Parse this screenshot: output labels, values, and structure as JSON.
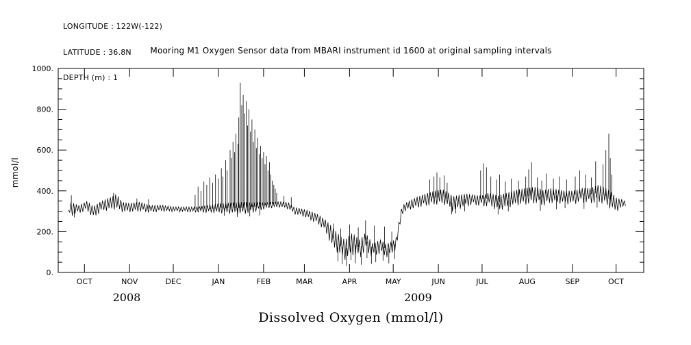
{
  "header": {
    "longitude": "LONGITUDE : 122W(-122)",
    "latitude": "LATITUDE : 36.8N",
    "depth": "DEPTH (m) : 1"
  },
  "title": "Mooring M1 Oxygen Sensor data from MBARI instrument id 1600 at original sampling intervals",
  "caption": "Dissolved Oxygen (mmol/l)",
  "chart_data": {
    "type": "line",
    "title": "Mooring M1 Oxygen Sensor data from MBARI instrument id 1600 at original sampling intervals",
    "xlabel": "Dissolved Oxygen (mmol/l)",
    "ylabel": "mmol/l",
    "ylim": [
      0,
      1000
    ],
    "y_ticks": [
      0,
      200,
      400,
      600,
      800,
      1000
    ],
    "y_tick_labels": [
      "0.",
      "200.",
      "400.",
      "600.",
      "800.",
      "1000."
    ],
    "x_domain_days": [
      -18,
      384
    ],
    "x_day_reference": "day 0 = OCT 2008 month tick; ticks at calendar month starts",
    "x_ticks_days": [
      0,
      31,
      61,
      92,
      123,
      151,
      182,
      212,
      243,
      273,
      304,
      335,
      365
    ],
    "x_tick_labels": [
      "OCT",
      "NOV",
      "DEC",
      "JAN",
      "FEB",
      "MAR",
      "APR",
      "MAY",
      "JUN",
      "JUL",
      "AUG",
      "SEP",
      "OCT"
    ],
    "year_labels": [
      {
        "text": "2008",
        "day": 29
      },
      {
        "text": "2009",
        "day": 229
      }
    ],
    "line_color": "#000000",
    "grid": false,
    "legend": "none",
    "envelope_format": "[day, band_low_mmol_l, band_high_mmol_l] noisy-band envelope of the sensor trace",
    "envelope": [
      [
        -11,
        295,
        310
      ],
      [
        -9,
        275,
        370
      ],
      [
        -4,
        290,
        340
      ],
      [
        2,
        300,
        360
      ],
      [
        6,
        265,
        330
      ],
      [
        12,
        300,
        355
      ],
      [
        18,
        305,
        370
      ],
      [
        22,
        310,
        385
      ],
      [
        26,
        295,
        345
      ],
      [
        31,
        295,
        340
      ],
      [
        38,
        298,
        348
      ],
      [
        45,
        292,
        332
      ],
      [
        53,
        298,
        338
      ],
      [
        61,
        298,
        330
      ],
      [
        70,
        296,
        326
      ],
      [
        76,
        294,
        324
      ],
      [
        83,
        292,
        330
      ],
      [
        92,
        290,
        338
      ],
      [
        100,
        288,
        342
      ],
      [
        108,
        285,
        348
      ],
      [
        116,
        292,
        350
      ],
      [
        123,
        308,
        352
      ],
      [
        128,
        315,
        355
      ],
      [
        134,
        318,
        358
      ],
      [
        140,
        310,
        350
      ],
      [
        144,
        285,
        325
      ],
      [
        151,
        272,
        312
      ],
      [
        156,
        252,
        300
      ],
      [
        161,
        232,
        282
      ],
      [
        165,
        205,
        262
      ],
      [
        170,
        125,
        225
      ],
      [
        175,
        85,
        185
      ],
      [
        179,
        60,
        165
      ],
      [
        184,
        85,
        205
      ],
      [
        189,
        65,
        175
      ],
      [
        193,
        105,
        215
      ],
      [
        198,
        70,
        165
      ],
      [
        203,
        92,
        185
      ],
      [
        207,
        72,
        155
      ],
      [
        212,
        92,
        165
      ],
      [
        214,
        110,
        180
      ],
      [
        216,
        200,
        260
      ],
      [
        218,
        285,
        330
      ],
      [
        222,
        305,
        350
      ],
      [
        228,
        315,
        370
      ],
      [
        234,
        325,
        385
      ],
      [
        240,
        330,
        400
      ],
      [
        246,
        335,
        410
      ],
      [
        250,
        320,
        395
      ],
      [
        253,
        295,
        380
      ],
      [
        257,
        310,
        390
      ],
      [
        262,
        322,
        400
      ],
      [
        268,
        330,
        398
      ],
      [
        273,
        320,
        395
      ],
      [
        278,
        325,
        405
      ],
      [
        284,
        300,
        385
      ],
      [
        290,
        315,
        395
      ],
      [
        296,
        328,
        405
      ],
      [
        304,
        332,
        415
      ],
      [
        310,
        338,
        420
      ],
      [
        315,
        325,
        405
      ],
      [
        321,
        340,
        420
      ],
      [
        328,
        336,
        412
      ],
      [
        335,
        332,
        420
      ],
      [
        341,
        342,
        438
      ],
      [
        347,
        336,
        428
      ],
      [
        353,
        342,
        440
      ],
      [
        358,
        330,
        420
      ],
      [
        362,
        305,
        395
      ],
      [
        365,
        298,
        368
      ],
      [
        369,
        315,
        358
      ],
      [
        372,
        328,
        345
      ]
    ],
    "spikes_format": "[day, peak_value_mmol_l] isolated vertical excursions from the band",
    "spikes": [
      [
        -9,
        378
      ],
      [
        -7,
        270
      ],
      [
        20,
        390
      ],
      [
        36,
        362
      ],
      [
        44,
        358
      ],
      [
        76,
        380
      ],
      [
        78,
        420
      ],
      [
        80,
        400
      ],
      [
        82,
        445
      ],
      [
        84,
        430
      ],
      [
        86,
        465
      ],
      [
        88,
        440
      ],
      [
        90,
        480
      ],
      [
        92,
        460
      ],
      [
        94,
        510
      ],
      [
        95,
        470
      ],
      [
        96,
        278
      ],
      [
        97,
        550
      ],
      [
        98,
        500
      ],
      [
        100,
        600
      ],
      [
        101,
        560
      ],
      [
        102,
        640
      ],
      [
        103,
        590
      ],
      [
        104,
        680
      ],
      [
        105,
        272
      ],
      [
        105.5,
        630
      ],
      [
        106,
        760
      ],
      [
        107,
        930
      ],
      [
        108,
        820
      ],
      [
        109,
        870
      ],
      [
        110,
        780
      ],
      [
        111,
        840
      ],
      [
        112,
        720
      ],
      [
        113,
        800
      ],
      [
        113.5,
        275
      ],
      [
        114,
        690
      ],
      [
        115,
        750
      ],
      [
        116,
        640
      ],
      [
        117,
        700
      ],
      [
        118,
        610
      ],
      [
        119,
        660
      ],
      [
        120,
        580
      ],
      [
        120.5,
        280
      ],
      [
        121,
        620
      ],
      [
        122,
        560
      ],
      [
        123,
        590
      ],
      [
        124,
        530
      ],
      [
        125,
        570
      ],
      [
        126,
        500
      ],
      [
        127,
        540
      ],
      [
        128,
        480
      ],
      [
        129,
        450
      ],
      [
        130,
        430
      ],
      [
        131,
        410
      ],
      [
        132,
        390
      ],
      [
        137,
        375
      ],
      [
        142,
        368
      ],
      [
        171,
        240
      ],
      [
        174,
        55
      ],
      [
        176,
        215
      ],
      [
        177,
        40
      ],
      [
        180,
        32
      ],
      [
        182,
        235
      ],
      [
        183,
        60
      ],
      [
        186,
        45
      ],
      [
        188,
        220
      ],
      [
        190,
        38
      ],
      [
        193,
        255
      ],
      [
        194,
        70
      ],
      [
        197,
        42
      ],
      [
        199,
        230
      ],
      [
        200,
        50
      ],
      [
        205,
        58
      ],
      [
        206,
        225
      ],
      [
        209,
        45
      ],
      [
        211,
        200
      ],
      [
        213,
        65
      ],
      [
        237,
        455
      ],
      [
        240,
        470
      ],
      [
        242,
        490
      ],
      [
        244,
        465
      ],
      [
        247,
        475
      ],
      [
        249,
        440
      ],
      [
        252,
        285
      ],
      [
        255,
        290
      ],
      [
        261,
        300
      ],
      [
        272,
        500
      ],
      [
        274,
        535
      ],
      [
        276,
        515
      ],
      [
        279,
        470
      ],
      [
        283,
        455
      ],
      [
        284,
        285
      ],
      [
        285,
        480
      ],
      [
        289,
        445
      ],
      [
        291,
        300
      ],
      [
        293,
        460
      ],
      [
        298,
        450
      ],
      [
        303,
        470
      ],
      [
        305,
        505
      ],
      [
        307,
        540
      ],
      [
        311,
        465
      ],
      [
        313,
        302
      ],
      [
        314,
        450
      ],
      [
        317,
        485
      ],
      [
        322,
        460
      ],
      [
        324,
        310
      ],
      [
        326,
        470
      ],
      [
        330,
        315
      ],
      [
        331,
        455
      ],
      [
        337,
        470
      ],
      [
        340,
        500
      ],
      [
        343,
        312
      ],
      [
        344,
        480
      ],
      [
        348,
        465
      ],
      [
        351,
        545
      ],
      [
        352,
        318
      ],
      [
        356,
        530
      ],
      [
        358,
        600
      ],
      [
        360,
        680
      ],
      [
        361,
        560
      ],
      [
        362,
        480
      ]
    ]
  }
}
